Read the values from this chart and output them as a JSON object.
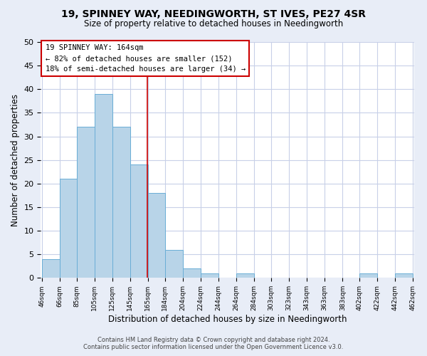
{
  "title": "19, SPINNEY WAY, NEEDINGWORTH, ST IVES, PE27 4SR",
  "subtitle": "Size of property relative to detached houses in Needingworth",
  "xlabel": "Distribution of detached houses by size in Needingworth",
  "ylabel": "Number of detached properties",
  "footer_line1": "Contains HM Land Registry data © Crown copyright and database right 2024.",
  "footer_line2": "Contains public sector information licensed under the Open Government Licence v3.0.",
  "bar_edges": [
    46,
    66,
    85,
    105,
    125,
    145,
    165,
    184,
    204,
    224,
    244,
    264,
    284,
    303,
    323,
    343,
    363,
    383,
    402,
    422,
    442
  ],
  "bar_heights": [
    4,
    21,
    32,
    39,
    32,
    24,
    18,
    6,
    2,
    1,
    0,
    1,
    0,
    0,
    0,
    0,
    0,
    0,
    1,
    0,
    1
  ],
  "bar_color": "#b8d4e8",
  "bar_edge_color": "#6aaed6",
  "reference_line_x": 164,
  "reference_line_color": "#cc0000",
  "annotation_title": "19 SPINNEY WAY: 164sqm",
  "annotation_line1": "← 82% of detached houses are smaller (152)",
  "annotation_line2": "18% of semi-detached houses are larger (34) →",
  "annotation_box_color": "#cc0000",
  "annotation_fill": "#ffffff",
  "ylim": [
    0,
    50
  ],
  "yticks": [
    0,
    5,
    10,
    15,
    20,
    25,
    30,
    35,
    40,
    45,
    50
  ],
  "background_color": "#e8edf7",
  "plot_background": "#ffffff",
  "grid_color": "#c8d0e8"
}
